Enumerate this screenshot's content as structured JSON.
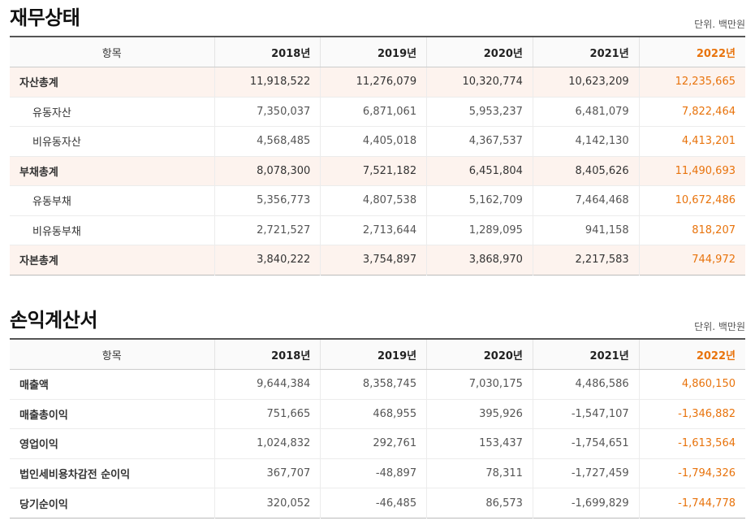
{
  "balance": {
    "title": "재무상태",
    "unit": "단위. 백만원",
    "headers": [
      "항목",
      "2018년",
      "2019년",
      "2020년",
      "2021년",
      "2022년"
    ],
    "rows": [
      {
        "label": "자산총계",
        "values": [
          "11,918,522",
          "11,276,079",
          "10,320,774",
          "10,623,209",
          "12,235,665"
        ]
      },
      {
        "label": "유동자산",
        "values": [
          "7,350,037",
          "6,871,061",
          "5,953,237",
          "6,481,079",
          "7,822,464"
        ]
      },
      {
        "label": "비유동자산",
        "values": [
          "4,568,485",
          "4,405,018",
          "4,367,537",
          "4,142,130",
          "4,413,201"
        ]
      },
      {
        "label": "부채총계",
        "values": [
          "8,078,300",
          "7,521,182",
          "6,451,804",
          "8,405,626",
          "11,490,693"
        ]
      },
      {
        "label": "유동부채",
        "values": [
          "5,356,773",
          "4,807,538",
          "5,162,709",
          "7,464,468",
          "10,672,486"
        ]
      },
      {
        "label": "비유동부채",
        "values": [
          "2,721,527",
          "2,713,644",
          "1,289,095",
          "941,158",
          "818,207"
        ]
      },
      {
        "label": "자본총계",
        "values": [
          "3,840,222",
          "3,754,897",
          "3,868,970",
          "2,217,583",
          "744,972"
        ]
      }
    ]
  },
  "income": {
    "title": "손익계산서",
    "unit": "단위. 백만원",
    "headers": [
      "항목",
      "2018년",
      "2019년",
      "2020년",
      "2021년",
      "2022년"
    ],
    "rows": [
      {
        "label": "매출액",
        "values": [
          "9,644,384",
          "8,358,745",
          "7,030,175",
          "4,486,586",
          "4,860,150"
        ]
      },
      {
        "label": "매출총이익",
        "values": [
          "751,665",
          "468,955",
          "395,926",
          "-1,547,107",
          "-1,346,882"
        ]
      },
      {
        "label": "영업이익",
        "values": [
          "1,024,832",
          "292,761",
          "153,437",
          "-1,754,651",
          "-1,613,564"
        ]
      },
      {
        "label": "법인세비용차감전 순이익",
        "values": [
          "367,707",
          "-48,897",
          "78,311",
          "-1,727,459",
          "-1,794,326"
        ]
      },
      {
        "label": "당기순이익",
        "values": [
          "320,052",
          "-46,485",
          "86,573",
          "-1,699,829",
          "-1,744,778"
        ]
      }
    ]
  },
  "colors": {
    "highlight_year": "#e8730c",
    "total_row_bg": "#fdf3ee"
  }
}
